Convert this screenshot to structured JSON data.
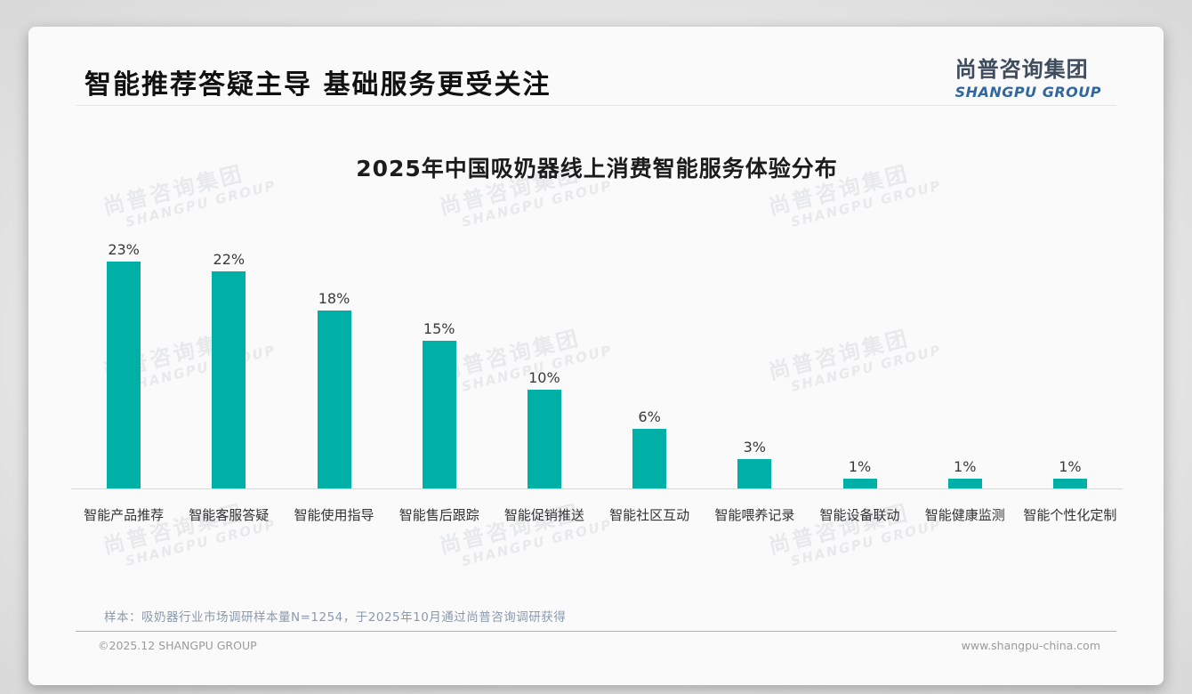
{
  "header": {
    "title": "智能推荐答疑主导 基础服务更受关注",
    "logo_cn": "尚普咨询集团",
    "logo_en": "SHANGPU GROUP"
  },
  "chart_data": {
    "type": "bar",
    "title": "2025年中国吸奶器线上消费智能服务体验分布",
    "categories": [
      "智能产品推荐",
      "智能客服答疑",
      "智能使用指导",
      "智能售后跟踪",
      "智能促销推送",
      "智能社区互动",
      "智能喂养记录",
      "智能设备联动",
      "智能健康监测",
      "智能个性化定制"
    ],
    "values": [
      23,
      22,
      18,
      15,
      10,
      6,
      3,
      1,
      1,
      1
    ],
    "value_labels": [
      "23%",
      "22%",
      "18%",
      "15%",
      "10%",
      "6%",
      "3%",
      "1%",
      "1%",
      "1%"
    ],
    "unit": "%",
    "bar_color": "#00b0a6",
    "xlabel": "",
    "ylabel": "",
    "ylim": [
      0,
      25
    ],
    "grid": false,
    "legend": null,
    "value_label_position": "above-bars"
  },
  "watermark": {
    "text_cn": "尚普咨询集团",
    "text_en": "SHANGPU GROUP"
  },
  "footer": {
    "note": "样本：吸奶器行业市场调研样本量N=1254，于2025年10月通过尚普咨询调研获得",
    "copyright": "©2025.12 SHANGPU GROUP",
    "website": "www.shangpu-china.com"
  }
}
